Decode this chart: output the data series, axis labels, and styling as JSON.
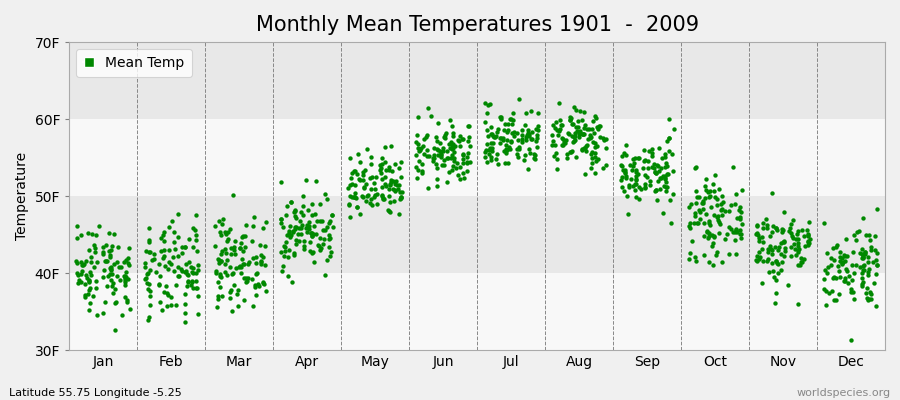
{
  "title": "Monthly Mean Temperatures 1901  -  2009",
  "ylabel": "Temperature",
  "ylim": [
    30,
    70
  ],
  "yticks": [
    30,
    40,
    50,
    60,
    70
  ],
  "ytick_labels": [
    "30F",
    "40F",
    "50F",
    "60F",
    "70F"
  ],
  "month_labels": [
    "Jan",
    "Feb",
    "Mar",
    "Apr",
    "May",
    "Jun",
    "Jul",
    "Aug",
    "Sep",
    "Oct",
    "Nov",
    "Dec"
  ],
  "footnote_left": "Latitude 55.75 Longitude -5.25",
  "footnote_right": "worldspecies.org",
  "dot_color": "#008800",
  "legend_label": "Mean Temp",
  "plot_bg_color": "#f0f0f0",
  "fig_bg_color": "#f0f0f0",
  "band_color_light": "#f8f8f8",
  "band_color_dark": "#e8e8e8",
  "n_years": 109,
  "monthly_mean_F": [
    40.5,
    40.0,
    41.5,
    45.5,
    51.0,
    55.5,
    57.5,
    57.5,
    53.0,
    47.0,
    43.5,
    41.0
  ],
  "monthly_std_F": [
    3.0,
    3.2,
    2.8,
    2.5,
    2.2,
    2.0,
    2.0,
    2.0,
    2.2,
    2.5,
    2.5,
    2.8
  ],
  "seed": 42,
  "title_fontsize": 15,
  "axis_fontsize": 10,
  "tick_fontsize": 10,
  "dot_size": 10,
  "dot_marker": "o"
}
